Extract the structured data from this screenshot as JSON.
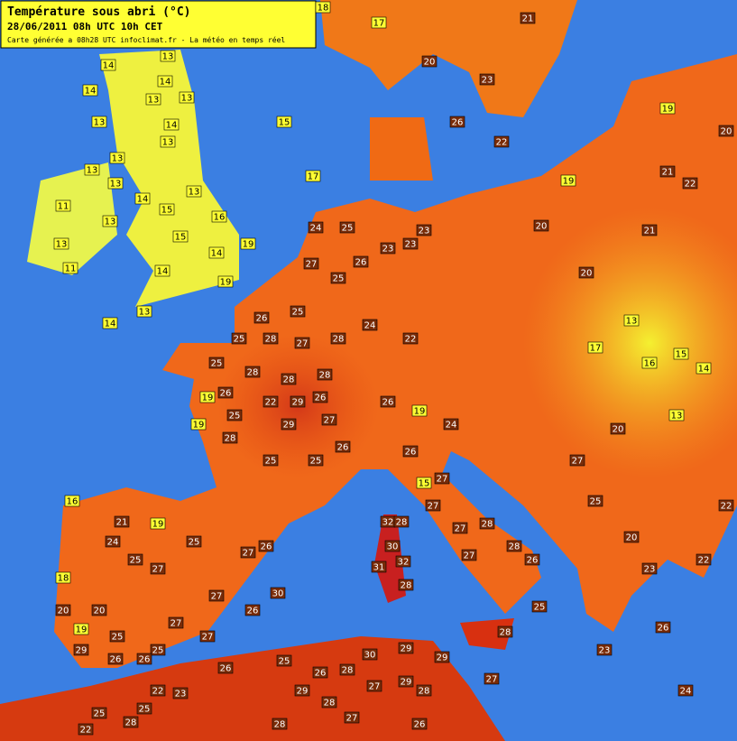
{
  "header": {
    "title": "Température sous abri (°C)",
    "date_line": "28/06/2011  08h UTC  10h CET",
    "credit": "Carte générée a 08h28 UTC   infoclimat.fr - La météo en temps réel"
  },
  "label_style": {
    "threshold": 20,
    "low_fill": "#ffff33",
    "low_text": "#000000",
    "high_fill": "#7a2c08",
    "high_text": "#ffffff"
  },
  "stations": [
    14,
    13,
    14,
    14,
    13,
    13,
    13,
    14,
    13,
    13,
    13,
    13,
    14,
    13,
    11,
    13,
    13,
    11,
    15,
    16,
    15,
    19,
    14,
    14,
    19,
    13,
    14,
    15,
    17,
    24,
    25,
    27,
    25,
    26,
    23,
    23,
    23,
    26,
    25,
    25,
    28,
    27,
    28,
    24,
    22,
    25,
    28,
    28,
    28,
    26,
    22,
    29,
    26,
    25,
    29,
    27,
    25,
    25,
    26,
    28,
    19,
    19,
    26,
    19,
    24,
    15,
    26,
    27,
    27,
    32,
    28,
    30,
    31,
    32,
    28,
    27,
    28,
    27,
    28,
    25,
    28,
    16,
    21,
    19,
    24,
    25,
    27,
    25,
    27,
    27,
    26,
    18,
    20,
    19,
    20,
    25,
    25,
    27,
    27,
    29,
    26,
    26,
    30,
    26,
    18,
    17,
    20,
    23,
    26,
    22,
    21,
    19,
    19,
    21,
    20,
    22,
    21,
    20,
    20,
    13,
    17,
    16,
    15,
    14,
    13,
    20,
    27,
    25,
    20,
    23,
    22,
    22,
    26,
    23,
    24,
    26,
    26,
    25,
    26,
    28,
    30,
    29,
    29,
    29,
    28,
    27,
    29,
    28,
    27,
    25,
    25,
    22,
    23,
    28,
    27,
    26,
    22,
    28
  ]
}
